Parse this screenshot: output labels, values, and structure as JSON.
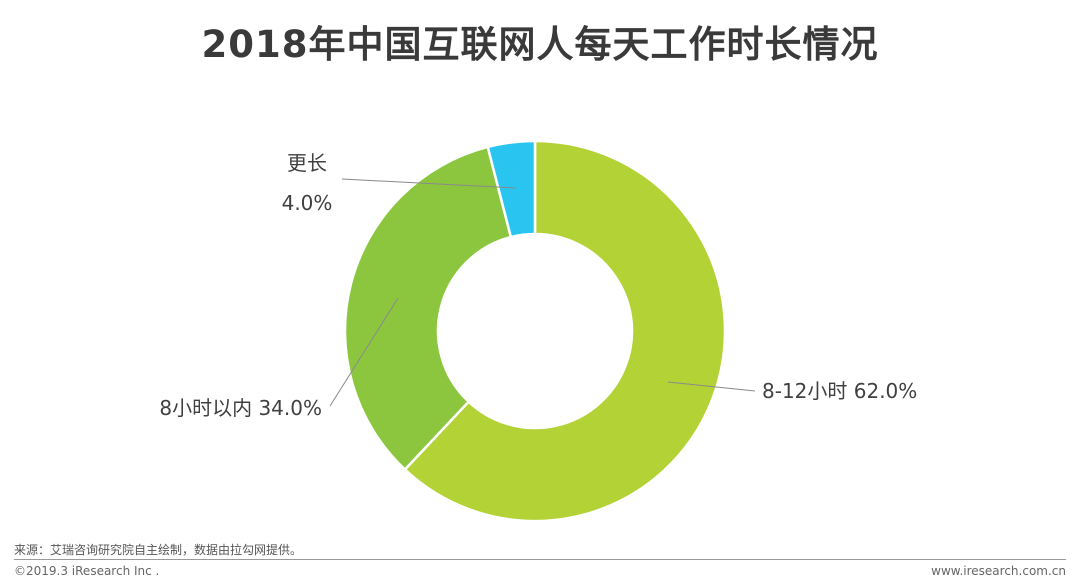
{
  "title": "2018年中国互联网人每天工作时长情况",
  "chart_data": {
    "type": "pie",
    "style": "donut",
    "title": "2018年中国互联网人每天工作时长情况",
    "slices": [
      {
        "label": "8-12小时",
        "value": 62.0,
        "value_text": "62.0%",
        "color": "#b3d236"
      },
      {
        "label": "8小时以内",
        "value": 34.0,
        "value_text": "34.0%",
        "color": "#8cc63f"
      },
      {
        "label": "更长",
        "value": 4.0,
        "value_text": "4.0%",
        "color": "#29c5f0"
      }
    ]
  },
  "footer": {
    "source": "来源：艾瑞咨询研究院自主绘制，数据由拉勾网提供。",
    "copyright": "©2019.3 iResearch Inc .",
    "website": "www.iresearch.com.cn"
  }
}
